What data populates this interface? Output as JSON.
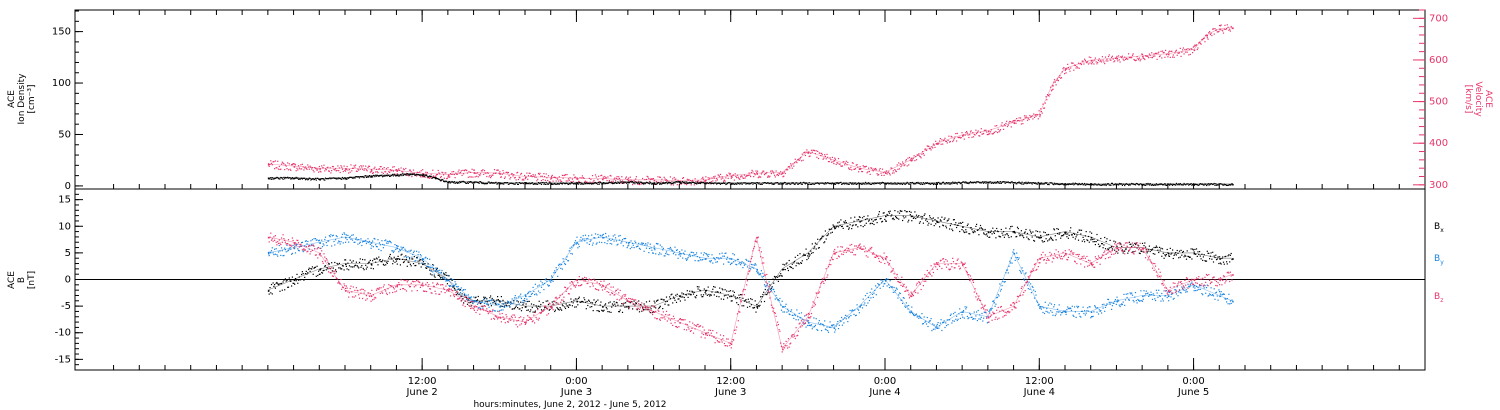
{
  "colors": {
    "black": "#000000",
    "pink": "#e8356b",
    "blue": "#1a84e0"
  },
  "chart_data": [
    {
      "type": "scatter",
      "panel": "top",
      "ylabel_left": [
        "ACE",
        "Ion Density",
        "[cm⁻³]"
      ],
      "ylabel_right": [
        "ACE",
        "Velocity",
        "[km/s]"
      ],
      "ylim_left": [
        -3,
        171
      ],
      "ylim_right": [
        290,
        720
      ],
      "yticks_left": [
        "0",
        "50",
        "100",
        "150"
      ],
      "yticks_right": [
        "300",
        "400",
        "500",
        "600",
        "700"
      ],
      "series": [
        {
          "axis": "left",
          "color": "#000000",
          "points": [
            [
              0,
              8
            ],
            [
              2,
              8
            ],
            [
              4,
              7
            ],
            [
              6,
              8
            ],
            [
              8,
              10
            ],
            [
              10,
              11
            ],
            [
              11,
              12
            ],
            [
              12,
              11
            ],
            [
              13,
              8
            ],
            [
              14,
              4
            ],
            [
              16,
              4
            ],
            [
              18,
              3
            ],
            [
              20,
              3
            ],
            [
              22,
              3
            ],
            [
              24,
              3
            ],
            [
              26,
              3
            ],
            [
              28,
              4
            ],
            [
              30,
              3
            ],
            [
              32,
              4
            ],
            [
              34,
              3
            ],
            [
              36,
              3
            ],
            [
              40,
              3
            ],
            [
              44,
              3
            ],
            [
              48,
              3
            ],
            [
              52,
              3
            ],
            [
              56,
              4
            ],
            [
              60,
              3
            ],
            [
              64,
              2
            ],
            [
              68,
              2
            ],
            [
              72,
              2
            ],
            [
              75,
              2
            ]
          ]
        },
        {
          "axis": "right",
          "color": "#e8356b",
          "points": [
            [
              0,
              350
            ],
            [
              2,
              345
            ],
            [
              4,
              340
            ],
            [
              6,
              340
            ],
            [
              8,
              338
            ],
            [
              10,
              335
            ],
            [
              12,
              328
            ],
            [
              14,
              325
            ],
            [
              16,
              330
            ],
            [
              18,
              328
            ],
            [
              20,
              320
            ],
            [
              22,
              318
            ],
            [
              24,
              316
            ],
            [
              26,
              315
            ],
            [
              28,
              312
            ],
            [
              30,
              312
            ],
            [
              32,
              310
            ],
            [
              34,
              312
            ],
            [
              36,
              322
            ],
            [
              38,
              328
            ],
            [
              40,
              330
            ],
            [
              42,
              380
            ],
            [
              44,
              360
            ],
            [
              46,
              340
            ],
            [
              48,
              330
            ],
            [
              50,
              360
            ],
            [
              52,
              400
            ],
            [
              54,
              420
            ],
            [
              56,
              430
            ],
            [
              58,
              450
            ],
            [
              60,
              470
            ],
            [
              61,
              540
            ],
            [
              62,
              580
            ],
            [
              64,
              600
            ],
            [
              66,
              605
            ],
            [
              68,
              610
            ],
            [
              70,
              615
            ],
            [
              72,
              625
            ],
            [
              73,
              660
            ],
            [
              74,
              675
            ],
            [
              75,
              678
            ]
          ]
        }
      ]
    },
    {
      "type": "scatter",
      "panel": "bottom",
      "ylabel_left": [
        "ACE",
        "B",
        "[nT]"
      ],
      "ylim": [
        -17,
        17
      ],
      "yticks": [
        "-15",
        "-10",
        "-5",
        "0",
        "5",
        "10",
        "15"
      ],
      "zero_line": true,
      "legend": [
        "B_x",
        "B_y",
        "B_z"
      ],
      "legend_placement": "right",
      "series": [
        {
          "name": "B_x",
          "color": "#000000",
          "points": [
            [
              0,
              -2
            ],
            [
              2,
              0
            ],
            [
              4,
              2
            ],
            [
              6,
              3
            ],
            [
              8,
              3
            ],
            [
              10,
              4
            ],
            [
              12,
              3
            ],
            [
              14,
              0
            ],
            [
              15,
              -3
            ],
            [
              16,
              -4
            ],
            [
              18,
              -4
            ],
            [
              20,
              -5
            ],
            [
              22,
              -5
            ],
            [
              24,
              -4
            ],
            [
              26,
              -5
            ],
            [
              28,
              -5
            ],
            [
              30,
              -5
            ],
            [
              32,
              -3
            ],
            [
              34,
              -2
            ],
            [
              36,
              -3
            ],
            [
              38,
              -5
            ],
            [
              40,
              2
            ],
            [
              42,
              5
            ],
            [
              44,
              10
            ],
            [
              46,
              11
            ],
            [
              48,
              12
            ],
            [
              50,
              12
            ],
            [
              52,
              11
            ],
            [
              54,
              10
            ],
            [
              56,
              9
            ],
            [
              58,
              9
            ],
            [
              60,
              8
            ],
            [
              62,
              9
            ],
            [
              64,
              8
            ],
            [
              66,
              6
            ],
            [
              68,
              6
            ],
            [
              70,
              5
            ],
            [
              72,
              5
            ],
            [
              74,
              4
            ],
            [
              75,
              4
            ]
          ]
        },
        {
          "name": "B_y",
          "color": "#1a84e0",
          "points": [
            [
              0,
              5
            ],
            [
              2,
              6
            ],
            [
              4,
              7
            ],
            [
              6,
              8
            ],
            [
              8,
              7
            ],
            [
              10,
              6
            ],
            [
              12,
              4
            ],
            [
              14,
              0
            ],
            [
              16,
              -4
            ],
            [
              18,
              -5
            ],
            [
              20,
              -3
            ],
            [
              22,
              0
            ],
            [
              24,
              7
            ],
            [
              26,
              8
            ],
            [
              28,
              7
            ],
            [
              30,
              6
            ],
            [
              32,
              5
            ],
            [
              34,
              4
            ],
            [
              36,
              4
            ],
            [
              38,
              2
            ],
            [
              40,
              -5
            ],
            [
              42,
              -8
            ],
            [
              44,
              -9
            ],
            [
              46,
              -5
            ],
            [
              48,
              0
            ],
            [
              50,
              -6
            ],
            [
              52,
              -9
            ],
            [
              54,
              -6
            ],
            [
              56,
              -7
            ],
            [
              58,
              5
            ],
            [
              60,
              -5
            ],
            [
              62,
              -6
            ],
            [
              64,
              -6
            ],
            [
              66,
              -4
            ],
            [
              68,
              -3
            ],
            [
              70,
              -3
            ],
            [
              72,
              -1
            ],
            [
              74,
              -3
            ],
            [
              75,
              -4
            ]
          ]
        },
        {
          "name": "B_z",
          "color": "#e8356b",
          "points": [
            [
              0,
              8
            ],
            [
              2,
              7
            ],
            [
              4,
              5
            ],
            [
              6,
              -2
            ],
            [
              8,
              -3
            ],
            [
              10,
              -1
            ],
            [
              12,
              -1
            ],
            [
              14,
              -2
            ],
            [
              16,
              -5
            ],
            [
              18,
              -7
            ],
            [
              20,
              -8
            ],
            [
              22,
              -5
            ],
            [
              24,
              0
            ],
            [
              26,
              -1
            ],
            [
              28,
              -4
            ],
            [
              30,
              -6
            ],
            [
              32,
              -8
            ],
            [
              34,
              -10
            ],
            [
              36,
              -12
            ],
            [
              38,
              8
            ],
            [
              40,
              -13
            ],
            [
              42,
              -7
            ],
            [
              44,
              5
            ],
            [
              46,
              6
            ],
            [
              48,
              4
            ],
            [
              50,
              -3
            ],
            [
              52,
              3
            ],
            [
              54,
              3
            ],
            [
              56,
              -7
            ],
            [
              58,
              -5
            ],
            [
              60,
              4
            ],
            [
              62,
              5
            ],
            [
              64,
              3
            ],
            [
              66,
              6
            ],
            [
              68,
              6
            ],
            [
              70,
              -2
            ],
            [
              72,
              0
            ],
            [
              74,
              0
            ],
            [
              75,
              1
            ]
          ]
        }
      ]
    }
  ],
  "xaxis": {
    "range_hours": [
      -15,
      90
    ],
    "ticks": [
      {
        "hour": 12,
        "line1": "12:00",
        "line2": "June 2"
      },
      {
        "hour": 24,
        "line1": "0:00",
        "line2": "June 3"
      },
      {
        "hour": 36,
        "line1": "12:00",
        "line2": "June 3"
      },
      {
        "hour": 48,
        "line1": "0:00",
        "line2": "June 4"
      },
      {
        "hour": 60,
        "line1": "12:00",
        "line2": "June 4"
      },
      {
        "hour": 72,
        "line1": "0:00",
        "line2": "June 5"
      }
    ],
    "label": "hours:minutes, June  2, 2012 - June  5, 2012"
  }
}
